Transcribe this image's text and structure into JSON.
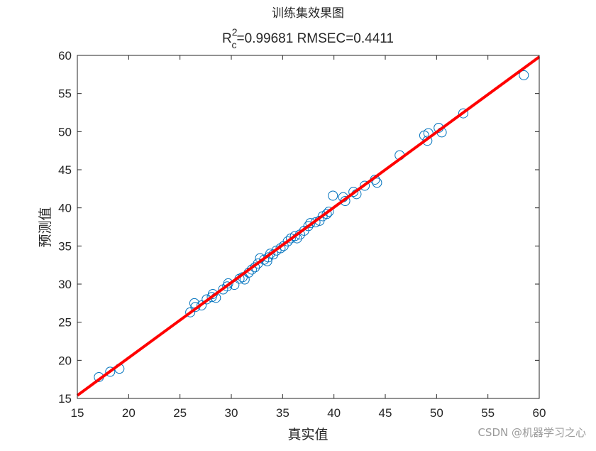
{
  "chart_data": {
    "type": "scatter",
    "title": "训练集效果图",
    "subtitle": {
      "base": "R",
      "sup": "2",
      "sub": "c",
      "rest": "=0.99681  RMSEC=0.4411"
    },
    "x_label": "真实值",
    "y_label": "预测值",
    "xlim": [
      15,
      60
    ],
    "ylim": [
      15,
      60
    ],
    "xticks": [
      15,
      20,
      25,
      30,
      35,
      40,
      45,
      50,
      55,
      60
    ],
    "yticks": [
      15,
      20,
      25,
      30,
      35,
      40,
      45,
      50,
      55,
      60
    ],
    "series": [
      {
        "color": "#0072bd",
        "x": [
          17.1,
          18.2,
          19.1,
          26.0,
          26.4,
          26.5,
          27.1,
          27.6,
          28.1,
          28.2,
          28.5,
          29.2,
          29.6,
          29.7,
          30.3,
          30.8,
          31.1,
          31.3,
          31.7,
          32.0,
          32.3,
          32.6,
          32.8,
          33.2,
          33.5,
          33.6,
          33.8,
          34.1,
          34.4,
          34.8,
          35.1,
          35.5,
          35.8,
          36.2,
          36.4,
          36.7,
          37.1,
          37.5,
          37.7,
          38.2,
          38.6,
          38.9,
          39.3,
          39.5,
          39.9,
          40.9,
          41.1,
          41.9,
          42.2,
          43.0,
          44.0,
          44.2,
          46.4,
          48.8,
          49.2,
          49.1,
          50.2,
          50.5,
          52.6,
          58.5
        ],
        "y": [
          17.8,
          18.5,
          18.9,
          26.3,
          27.5,
          27.0,
          27.2,
          28.0,
          28.3,
          28.7,
          28.2,
          29.3,
          29.7,
          30.1,
          29.9,
          30.7,
          30.9,
          30.6,
          31.5,
          31.9,
          32.2,
          32.7,
          33.4,
          33.2,
          33.0,
          33.5,
          34.0,
          33.9,
          34.4,
          34.7,
          35.0,
          35.6,
          36.0,
          36.3,
          36.0,
          36.5,
          37.0,
          37.6,
          38.0,
          38.1,
          38.3,
          38.9,
          39.2,
          39.5,
          41.6,
          41.4,
          40.9,
          42.1,
          41.8,
          42.9,
          43.7,
          43.3,
          46.9,
          49.5,
          49.8,
          48.8,
          50.5,
          49.9,
          52.4,
          57.4
        ]
      }
    ],
    "fit": {
      "color": "#ff0000",
      "x": [
        15,
        60
      ],
      "y": [
        15.4,
        59.8
      ]
    },
    "watermark": "CSDN @机器学习之心"
  }
}
